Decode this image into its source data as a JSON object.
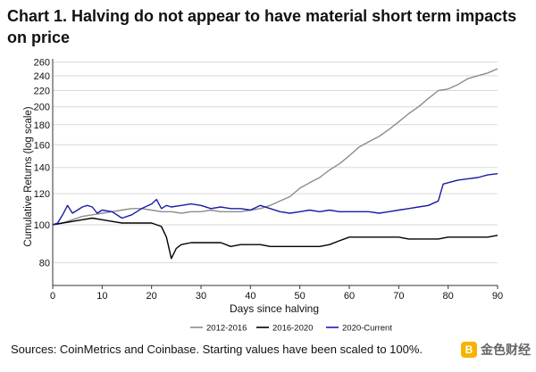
{
  "title": "Chart 1. Halving do not appear to have material short term impacts on price",
  "source": "Sources: CoinMetrics and Coinbase. Starting values have been scaled to 100%.",
  "watermark": {
    "text": "金色财经",
    "logo_letter": "B"
  },
  "chart_data": {
    "type": "line",
    "xlabel": "Days since halving",
    "ylabel": "Cumulative Returns (log scale)",
    "xlim": [
      0,
      90
    ],
    "ylim": [
      70,
      265
    ],
    "y_scale": "log",
    "grid": "horizontal",
    "legend_position": "bottom",
    "x_ticks": [
      0,
      10,
      20,
      30,
      40,
      50,
      60,
      70,
      80,
      90
    ],
    "y_ticks": [
      80,
      100,
      120,
      140,
      160,
      180,
      200,
      220,
      240,
      260
    ],
    "series": [
      {
        "name": "2012-2016",
        "color": "#8c8c8c",
        "x": [
          0,
          2,
          4,
          6,
          8,
          10,
          12,
          14,
          16,
          18,
          20,
          22,
          24,
          26,
          28,
          30,
          32,
          34,
          36,
          38,
          40,
          42,
          44,
          46,
          48,
          50,
          52,
          54,
          56,
          58,
          60,
          62,
          64,
          66,
          68,
          70,
          72,
          74,
          76,
          78,
          80,
          82,
          84,
          86,
          88,
          90
        ],
        "y": [
          100,
          101,
          103,
          105,
          106,
          107,
          108,
          109,
          110,
          110,
          109,
          108,
          108,
          107,
          108,
          108,
          109,
          108,
          108,
          108,
          109,
          110,
          112,
          115,
          118,
          124,
          128,
          132,
          138,
          143,
          150,
          158,
          163,
          168,
          175,
          183,
          192,
          200,
          210,
          220,
          222,
          228,
          236,
          240,
          244,
          250
        ]
      },
      {
        "name": "2016-2020",
        "color": "#000000",
        "x": [
          0,
          2,
          4,
          6,
          8,
          10,
          12,
          14,
          16,
          18,
          20,
          22,
          23,
          24,
          25,
          26,
          28,
          30,
          32,
          34,
          36,
          38,
          40,
          42,
          44,
          46,
          48,
          50,
          52,
          54,
          56,
          58,
          60,
          62,
          64,
          66,
          68,
          70,
          72,
          74,
          76,
          78,
          80,
          82,
          84,
          86,
          88,
          90
        ],
        "y": [
          100,
          101,
          102,
          103,
          104,
          103,
          102,
          101,
          101,
          101,
          101,
          99,
          93,
          82,
          87,
          89,
          90,
          90,
          90,
          90,
          88,
          89,
          89,
          89,
          88,
          88,
          88,
          88,
          88,
          88,
          89,
          91,
          93,
          93,
          93,
          93,
          93,
          93,
          92,
          92,
          92,
          92,
          93,
          93,
          93,
          93,
          93,
          94
        ]
      },
      {
        "name": "2020-Current",
        "color": "#1a1aa8",
        "x": [
          0,
          1,
          2,
          3,
          4,
          5,
          6,
          7,
          8,
          9,
          10,
          12,
          14,
          16,
          18,
          20,
          21,
          22,
          23,
          24,
          26,
          28,
          30,
          32,
          34,
          36,
          38,
          40,
          42,
          44,
          46,
          48,
          50,
          52,
          54,
          56,
          58,
          60,
          62,
          64,
          66,
          68,
          70,
          72,
          74,
          76,
          78,
          79,
          80,
          82,
          84,
          86,
          88,
          90
        ],
        "y": [
          100,
          101,
          106,
          112,
          107,
          109,
          111,
          112,
          111,
          107,
          109,
          108,
          104,
          106,
          110,
          113,
          116,
          110,
          112,
          111,
          112,
          113,
          112,
          110,
          111,
          110,
          110,
          109,
          112,
          110,
          108,
          107,
          108,
          109,
          108,
          109,
          108,
          108,
          108,
          108,
          107,
          108,
          109,
          110,
          111,
          112,
          115,
          127,
          128,
          130,
          131,
          132,
          134,
          135
        ]
      }
    ]
  }
}
